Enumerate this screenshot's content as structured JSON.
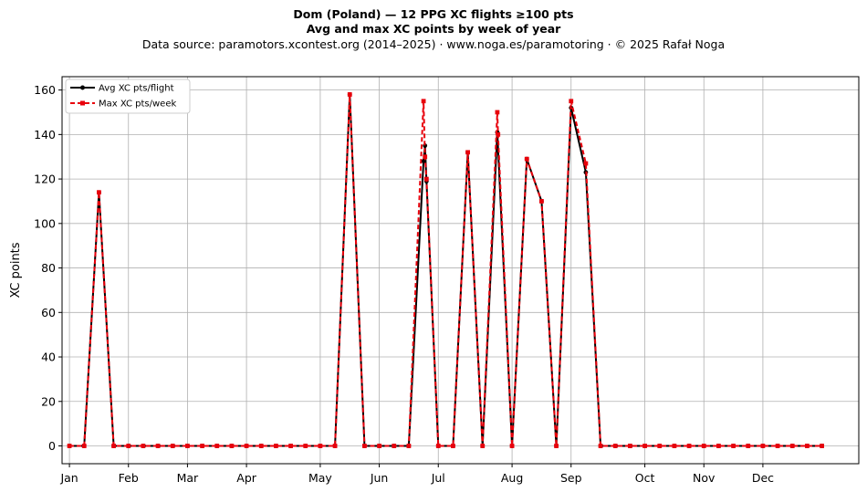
{
  "chart_data": {
    "type": "line",
    "title": "Dom (Poland)  —  12 PPG XC flights ≥100 pts",
    "subtitle": "Avg and max XC points by week of year",
    "source": "Data source: paramotors.xcontest.org (2014–2025)  ·  www.noga.es/paramotoring  ·  © 2025 Rafał Noga",
    "xlabel": "",
    "ylabel": "XC points",
    "ylim": [
      -8,
      166
    ],
    "xlim": [
      -0.5,
      53.5
    ],
    "yticks": [
      0,
      20,
      40,
      60,
      80,
      100,
      120,
      140,
      160
    ],
    "month_ticks": [
      {
        "label": "Jan",
        "x": 0
      },
      {
        "label": "Feb",
        "x": 4
      },
      {
        "label": "Mar",
        "x": 8
      },
      {
        "label": "Apr",
        "x": 12
      },
      {
        "label": "May",
        "x": 17
      },
      {
        "label": "Jun",
        "x": 21
      },
      {
        "label": "Jul",
        "x": 25
      },
      {
        "label": "Aug",
        "x": 30
      },
      {
        "label": "Sep",
        "x": 34
      },
      {
        "label": "Oct",
        "x": 39
      },
      {
        "label": "Nov",
        "x": 43
      },
      {
        "label": "Dec",
        "x": 47
      }
    ],
    "grid": true,
    "legend_position": "top-left",
    "series": [
      {
        "name": "Avg XC pts/flight",
        "color": "#000000",
        "style": "solid",
        "marker": "circle",
        "points": [
          [
            0,
            0
          ],
          [
            1,
            0
          ],
          [
            2,
            114
          ],
          [
            3,
            0
          ],
          [
            4,
            0
          ],
          [
            5,
            0
          ],
          [
            6,
            0
          ],
          [
            7,
            0
          ],
          [
            8,
            0
          ],
          [
            9,
            0
          ],
          [
            10,
            0
          ],
          [
            11,
            0
          ],
          [
            12,
            0
          ],
          [
            13,
            0
          ],
          [
            14,
            0
          ],
          [
            15,
            0
          ],
          [
            16,
            0
          ],
          [
            17,
            0
          ],
          [
            18,
            0
          ],
          [
            19,
            158
          ],
          [
            20,
            0
          ],
          [
            21,
            0
          ],
          [
            22,
            0
          ],
          [
            23,
            0
          ],
          [
            24,
            128
          ],
          [
            24.1,
            135
          ],
          [
            24.2,
            119
          ],
          [
            25,
            0
          ],
          [
            26,
            0
          ],
          [
            27,
            132
          ],
          [
            28,
            0
          ],
          [
            29,
            141
          ],
          [
            30,
            0
          ],
          [
            31,
            129
          ],
          [
            32,
            110
          ],
          [
            33,
            0
          ],
          [
            34,
            152
          ],
          [
            35,
            123
          ],
          [
            36,
            0
          ],
          [
            37,
            0
          ],
          [
            38,
            0
          ],
          [
            39,
            0
          ],
          [
            40,
            0
          ],
          [
            41,
            0
          ],
          [
            42,
            0
          ],
          [
            43,
            0
          ],
          [
            44,
            0
          ],
          [
            45,
            0
          ],
          [
            46,
            0
          ],
          [
            47,
            0
          ],
          [
            48,
            0
          ],
          [
            49,
            0
          ],
          [
            50,
            0
          ],
          [
            51,
            0
          ]
        ]
      },
      {
        "name": "Max XC pts/week",
        "color": "#e8000b",
        "style": "dashed",
        "marker": "square",
        "points": [
          [
            0,
            0
          ],
          [
            1,
            0
          ],
          [
            2,
            114
          ],
          [
            3,
            0
          ],
          [
            4,
            0
          ],
          [
            5,
            0
          ],
          [
            6,
            0
          ],
          [
            7,
            0
          ],
          [
            8,
            0
          ],
          [
            9,
            0
          ],
          [
            10,
            0
          ],
          [
            11,
            0
          ],
          [
            12,
            0
          ],
          [
            13,
            0
          ],
          [
            14,
            0
          ],
          [
            15,
            0
          ],
          [
            16,
            0
          ],
          [
            17,
            0
          ],
          [
            18,
            0
          ],
          [
            19,
            158
          ],
          [
            20,
            0
          ],
          [
            21,
            0
          ],
          [
            22,
            0
          ],
          [
            23,
            0
          ],
          [
            24,
            155
          ],
          [
            24.1,
            130
          ],
          [
            24.2,
            120
          ],
          [
            25,
            0
          ],
          [
            26,
            0
          ],
          [
            27,
            132
          ],
          [
            28,
            0
          ],
          [
            29,
            150
          ],
          [
            29.05,
            140
          ],
          [
            30,
            0
          ],
          [
            31,
            129
          ],
          [
            32,
            110
          ],
          [
            33,
            0
          ],
          [
            34,
            155
          ],
          [
            35,
            127
          ],
          [
            36,
            0
          ],
          [
            37,
            0
          ],
          [
            38,
            0
          ],
          [
            39,
            0
          ],
          [
            40,
            0
          ],
          [
            41,
            0
          ],
          [
            42,
            0
          ],
          [
            43,
            0
          ],
          [
            44,
            0
          ],
          [
            45,
            0
          ],
          [
            46,
            0
          ],
          [
            47,
            0
          ],
          [
            48,
            0
          ],
          [
            49,
            0
          ],
          [
            50,
            0
          ],
          [
            51,
            0
          ]
        ]
      }
    ]
  }
}
